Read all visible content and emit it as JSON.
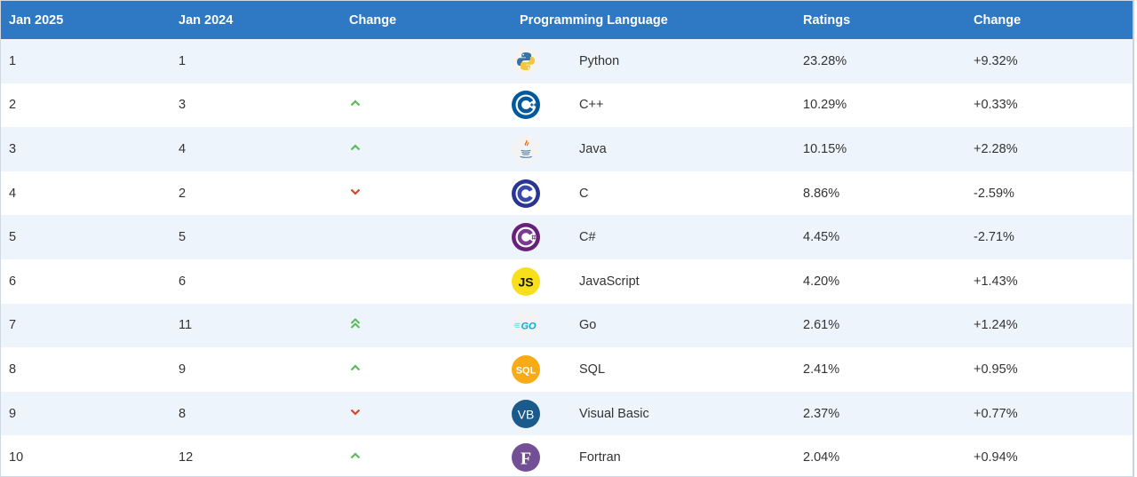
{
  "header": {
    "col_jan2025": "Jan 2025",
    "col_jan2024": "Jan 2024",
    "col_change": "Change",
    "col_language": "Programming Language",
    "col_ratings": "Ratings",
    "col_change2": "Change"
  },
  "rows": [
    {
      "rank2025": "1",
      "rank2024": "1",
      "trend": "none",
      "language": "Python",
      "logo": "python-logo-icon",
      "rating": "23.28%",
      "change": "+9.32%"
    },
    {
      "rank2025": "2",
      "rank2024": "3",
      "trend": "up",
      "language": "C++",
      "logo": "cpp-logo-icon",
      "rating": "10.29%",
      "change": "+0.33%"
    },
    {
      "rank2025": "3",
      "rank2024": "4",
      "trend": "up",
      "language": "Java",
      "logo": "java-logo-icon",
      "rating": "10.15%",
      "change": "+2.28%"
    },
    {
      "rank2025": "4",
      "rank2024": "2",
      "trend": "down",
      "language": "C",
      "logo": "c-logo-icon",
      "rating": "8.86%",
      "change": "-2.59%"
    },
    {
      "rank2025": "5",
      "rank2024": "5",
      "trend": "none",
      "language": "C#",
      "logo": "csharp-logo-icon",
      "rating": "4.45%",
      "change": "-2.71%"
    },
    {
      "rank2025": "6",
      "rank2024": "6",
      "trend": "none",
      "language": "JavaScript",
      "logo": "javascript-logo-icon",
      "rating": "4.20%",
      "change": "+1.43%"
    },
    {
      "rank2025": "7",
      "rank2024": "11",
      "trend": "double-up",
      "language": "Go",
      "logo": "go-logo-icon",
      "rating": "2.61%",
      "change": "+1.24%"
    },
    {
      "rank2025": "8",
      "rank2024": "9",
      "trend": "up",
      "language": "SQL",
      "logo": "sql-logo-icon",
      "rating": "2.41%",
      "change": "+0.95%"
    },
    {
      "rank2025": "9",
      "rank2024": "8",
      "trend": "down",
      "language": "Visual Basic",
      "logo": "visual-basic-logo-icon",
      "rating": "2.37%",
      "change": "+0.77%"
    },
    {
      "rank2025": "10",
      "rank2024": "12",
      "trend": "up",
      "language": "Fortran",
      "logo": "fortran-logo-icon",
      "rating": "2.04%",
      "change": "+0.94%"
    }
  ],
  "logo_text": {
    "javascript": "JS",
    "go": "GO",
    "sql": "SQL",
    "visual_basic": "VB",
    "fortran": "F"
  },
  "colors": {
    "header_bg": "#2f78c4",
    "row_alt_bg": "#edf4fb",
    "trend_up": "#5cb85c",
    "trend_down": "#d9452b"
  }
}
